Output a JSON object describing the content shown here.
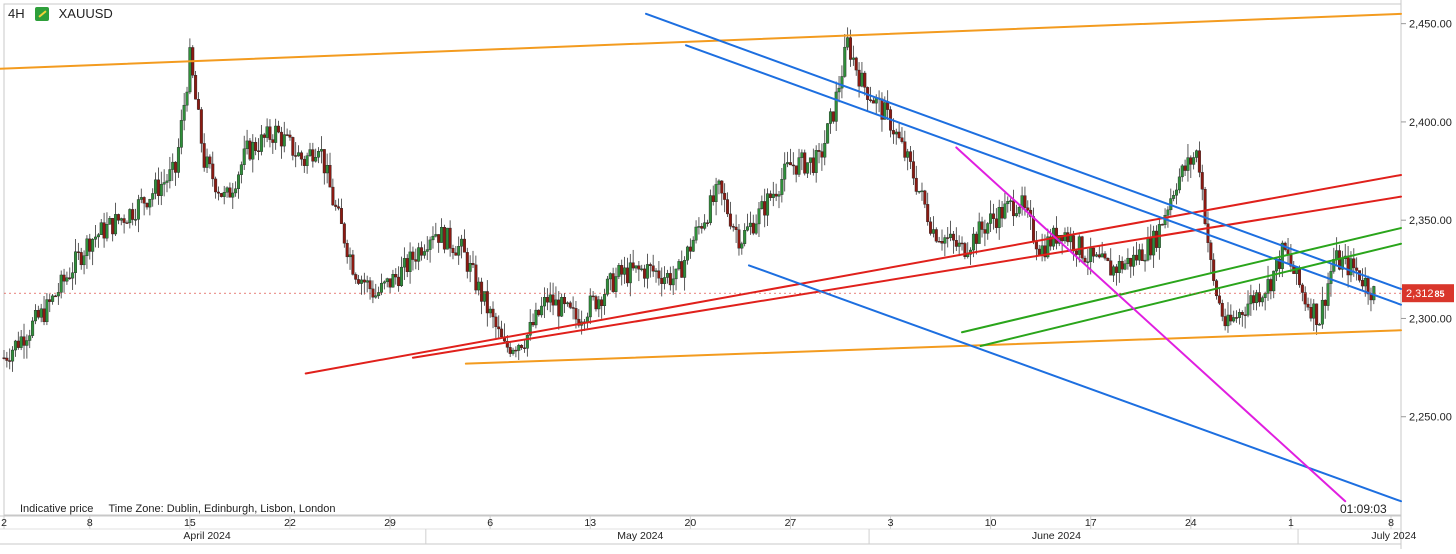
{
  "header": {
    "timeframe": "4H",
    "symbol": "XAUUSD",
    "symbol_icon": "gold-bars-icon"
  },
  "footer": {
    "indicative_label": "Indicative price",
    "timezone_label": "Time Zone: Dublin, Edinburgh, Lisbon, London",
    "countdown": "01:09:03"
  },
  "price_tag": {
    "main": "2,312",
    "small": "85",
    "color": "#d9362b"
  },
  "colors": {
    "up_candle": "#2f8f3a",
    "down_candle": "#8c1a12",
    "orange_line": "#f39b1f",
    "red_line": "#e0201b",
    "blue_line": "#1d6fe0",
    "green_line": "#2aa51b",
    "magenta_line": "#e01fe0"
  },
  "chart_data": {
    "type": "candlestick",
    "title": "",
    "instrument": "XAUUSD",
    "timeframe": "4H",
    "y_axis": {
      "ticks": [
        "2,250.00",
        "2,300.00",
        "2,350.00",
        "2,400.00",
        "2,450.00"
      ],
      "range": [
        2200,
        2460
      ]
    },
    "x_axis": {
      "day_ticks": [
        "2",
        "8",
        "15",
        "22",
        "29",
        "6",
        "13",
        "20",
        "27",
        "3",
        "10",
        "17",
        "24",
        "1",
        "8"
      ],
      "month_labels": [
        "April 2024",
        "May 2024",
        "June 2024",
        "July 2024"
      ],
      "range_days": [
        0,
        97.7
      ]
    },
    "last_price": 2312.85,
    "close_path": [
      [
        0,
        2280
      ],
      [
        3,
        2305
      ],
      [
        6,
        2340
      ],
      [
        9,
        2355
      ],
      [
        12,
        2375
      ],
      [
        13,
        2432
      ],
      [
        14,
        2380
      ],
      [
        15.5,
        2360
      ],
      [
        17,
        2385
      ],
      [
        19,
        2395
      ],
      [
        21,
        2380
      ],
      [
        22,
        2390
      ],
      [
        23,
        2360
      ],
      [
        24.5,
        2325
      ],
      [
        26,
        2312
      ],
      [
        28,
        2325
      ],
      [
        30,
        2345
      ],
      [
        32,
        2335
      ],
      [
        33.5,
        2310
      ],
      [
        35,
        2285
      ],
      [
        36.5,
        2290
      ],
      [
        38,
        2310
      ],
      [
        40,
        2300
      ],
      [
        41.5,
        2310
      ],
      [
        43,
        2322
      ],
      [
        45,
        2325
      ],
      [
        47,
        2320
      ],
      [
        48.5,
        2345
      ],
      [
        50,
        2365
      ],
      [
        51.5,
        2340
      ],
      [
        53,
        2355
      ],
      [
        55,
        2378
      ],
      [
        57,
        2380
      ],
      [
        58,
        2405
      ],
      [
        59,
        2440
      ],
      [
        60,
        2420
      ],
      [
        61,
        2410
      ],
      [
        62,
        2400
      ],
      [
        63.5,
        2375
      ],
      [
        65,
        2345
      ],
      [
        67,
        2335
      ],
      [
        69,
        2350
      ],
      [
        71,
        2360
      ],
      [
        72.5,
        2335
      ],
      [
        74,
        2345
      ],
      [
        76,
        2330
      ],
      [
        77.5,
        2325
      ],
      [
        79,
        2330
      ],
      [
        80.5,
        2340
      ],
      [
        82,
        2370
      ],
      [
        83.5,
        2385
      ],
      [
        84.5,
        2320
      ],
      [
        85.5,
        2295
      ],
      [
        87,
        2308
      ],
      [
        88.5,
        2318
      ],
      [
        89.5,
        2335
      ],
      [
        91,
        2310
      ],
      [
        92,
        2300
      ],
      [
        93,
        2330
      ],
      [
        94.5,
        2325
      ],
      [
        95.8,
        2313
      ]
    ],
    "trendlines": [
      {
        "color": "orange",
        "from": [
          -0.5,
          2427
        ],
        "to": [
          97.7,
          2455
        ]
      },
      {
        "color": "orange",
        "from": [
          32.3,
          2277
        ],
        "to": [
          97.7,
          2294
        ]
      },
      {
        "color": "red",
        "from": [
          21.1,
          2272
        ],
        "to": [
          97.7,
          2373
        ]
      },
      {
        "color": "red",
        "from": [
          28.6,
          2280
        ],
        "to": [
          97.7,
          2362
        ]
      },
      {
        "color": "blue",
        "from": [
          44.9,
          2455
        ],
        "to": [
          97.7,
          2315
        ]
      },
      {
        "color": "blue",
        "from": [
          47.7,
          2439
        ],
        "to": [
          97.7,
          2307
        ]
      },
      {
        "color": "blue",
        "from": [
          52.1,
          2327
        ],
        "to": [
          97.7,
          2207
        ]
      },
      {
        "color": "green",
        "from": [
          67.0,
          2293
        ],
        "to": [
          97.7,
          2346
        ]
      },
      {
        "color": "green",
        "from": [
          68.3,
          2286
        ],
        "to": [
          97.7,
          2338
        ]
      },
      {
        "color": "magenta",
        "from": [
          66.6,
          2387
        ],
        "to": [
          93.8,
          2207
        ]
      }
    ]
  }
}
